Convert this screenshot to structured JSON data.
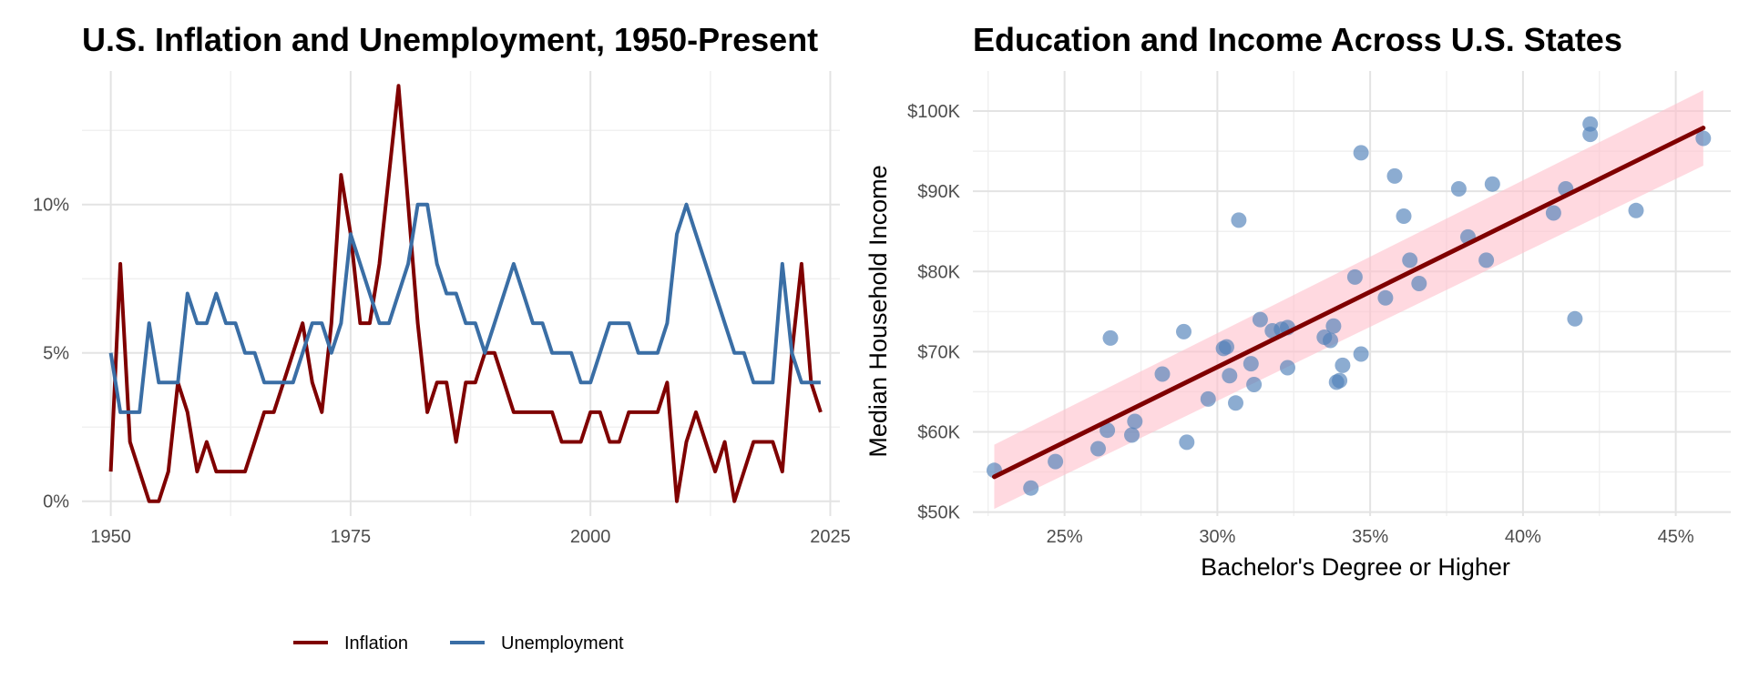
{
  "colors": {
    "inflation": "#7f0000",
    "unemployment": "#3a6ea5",
    "scatter_point": "#4e7fb8",
    "fit_line": "#7f0000",
    "confidence_band": "#ffc0cb"
  },
  "chart_data": [
    {
      "type": "line",
      "title": "U.S. Inflation and Unemployment, 1950-Present",
      "xlabel": "",
      "ylabel": "",
      "xlim": [
        1947,
        2026
      ],
      "ylim": [
        -0.5,
        14.5
      ],
      "x_ticks": [
        1950,
        1975,
        2000,
        2025
      ],
      "x_tick_labels": [
        "1950",
        "1975",
        "2000",
        "2025"
      ],
      "y_ticks": [
        0,
        5,
        10
      ],
      "y_tick_labels": [
        "0%",
        "5%",
        "10%"
      ],
      "legend_position": "bottom",
      "x": [
        1950,
        1951,
        1952,
        1953,
        1954,
        1955,
        1956,
        1957,
        1958,
        1959,
        1960,
        1961,
        1962,
        1963,
        1964,
        1965,
        1966,
        1967,
        1968,
        1969,
        1970,
        1971,
        1972,
        1973,
        1974,
        1975,
        1976,
        1977,
        1978,
        1979,
        1980,
        1981,
        1982,
        1983,
        1984,
        1985,
        1986,
        1987,
        1988,
        1989,
        1990,
        1991,
        1992,
        1993,
        1994,
        1995,
        1996,
        1997,
        1998,
        1999,
        2000,
        2001,
        2002,
        2003,
        2004,
        2005,
        2006,
        2007,
        2008,
        2009,
        2010,
        2011,
        2012,
        2013,
        2014,
        2015,
        2016,
        2017,
        2018,
        2019,
        2020,
        2021,
        2022,
        2023,
        2024
      ],
      "series": [
        {
          "name": "Inflation",
          "values": [
            1,
            8,
            2,
            1,
            0,
            0,
            1,
            4,
            3,
            1,
            2,
            1,
            1,
            1,
            1,
            2,
            3,
            3,
            4,
            5,
            6,
            4,
            3,
            6,
            11,
            9,
            6,
            6,
            8,
            11,
            14,
            10,
            6,
            3,
            4,
            4,
            2,
            4,
            4,
            5,
            5,
            4,
            3,
            3,
            3,
            3,
            3,
            2,
            2,
            2,
            3,
            3,
            2,
            2,
            3,
            3,
            3,
            3,
            4,
            0,
            2,
            3,
            2,
            1,
            2,
            0,
            1,
            2,
            2,
            2,
            1,
            5,
            8,
            4,
            3
          ]
        },
        {
          "name": "Unemployment",
          "values": [
            5,
            3,
            3,
            3,
            6,
            4,
            4,
            4,
            7,
            6,
            6,
            7,
            6,
            6,
            5,
            5,
            4,
            4,
            4,
            4,
            5,
            6,
            6,
            5,
            6,
            9,
            8,
            7,
            6,
            6,
            7,
            8,
            10,
            10,
            8,
            7,
            7,
            6,
            6,
            5,
            6,
            7,
            8,
            7,
            6,
            6,
            5,
            5,
            5,
            4,
            4,
            5,
            6,
            6,
            6,
            5,
            5,
            5,
            6,
            9,
            10,
            9,
            8,
            7,
            6,
            5,
            5,
            4,
            4,
            4,
            8,
            5,
            4,
            4,
            4
          ]
        }
      ]
    },
    {
      "type": "scatter",
      "title": "Education and Income Across U.S. States",
      "xlabel": "Bachelor's Degree or Higher",
      "ylabel": "Median Household Income",
      "xlim": [
        22,
        46.8
      ],
      "ylim": [
        49500,
        105000
      ],
      "x_ticks": [
        25,
        30,
        35,
        40,
        45
      ],
      "x_tick_labels": [
        "25%",
        "30%",
        "35%",
        "40%",
        "45%"
      ],
      "y_ticks": [
        50000,
        60000,
        70000,
        80000,
        90000,
        100000
      ],
      "y_tick_labels": [
        "$50K",
        "$60K",
        "$70K",
        "$80K",
        "$90K",
        "$100K"
      ],
      "fit_line": {
        "x": [
          22.7,
          45.9
        ],
        "y": [
          54400,
          97900
        ]
      },
      "confidence_band": {
        "x": [
          22.7,
          45.9
        ],
        "lower": [
          50400,
          93200
        ],
        "upper": [
          58400,
          102600
        ]
      },
      "points": [
        [
          22.7,
          55200
        ],
        [
          23.9,
          53000
        ],
        [
          24.7,
          56300
        ],
        [
          26.1,
          57900
        ],
        [
          26.4,
          60200
        ],
        [
          26.5,
          71700
        ],
        [
          27.2,
          59600
        ],
        [
          27.3,
          61300
        ],
        [
          28.2,
          67200
        ],
        [
          28.9,
          72500
        ],
        [
          29.0,
          58700
        ],
        [
          29.7,
          64100
        ],
        [
          30.2,
          70400
        ],
        [
          30.3,
          70600
        ],
        [
          30.4,
          67000
        ],
        [
          30.6,
          63600
        ],
        [
          30.7,
          86400
        ],
        [
          31.1,
          68500
        ],
        [
          31.2,
          65900
        ],
        [
          31.4,
          74000
        ],
        [
          31.8,
          72600
        ],
        [
          32.1,
          72800
        ],
        [
          32.3,
          73000
        ],
        [
          32.3,
          68000
        ],
        [
          33.5,
          71800
        ],
        [
          33.7,
          71400
        ],
        [
          33.8,
          73200
        ],
        [
          33.9,
          66200
        ],
        [
          34.0,
          66400
        ],
        [
          34.1,
          68300
        ],
        [
          34.5,
          79300
        ],
        [
          34.7,
          94800
        ],
        [
          34.7,
          69700
        ],
        [
          35.5,
          76700
        ],
        [
          35.8,
          91900
        ],
        [
          36.1,
          86900
        ],
        [
          36.3,
          81400
        ],
        [
          36.6,
          78500
        ],
        [
          37.9,
          90300
        ],
        [
          38.2,
          84300
        ],
        [
          38.8,
          81400
        ],
        [
          39.0,
          90900
        ],
        [
          41.0,
          87300
        ],
        [
          41.4,
          90300
        ],
        [
          41.7,
          74100
        ],
        [
          42.2,
          98400
        ],
        [
          42.2,
          97100
        ],
        [
          43.7,
          87600
        ],
        [
          45.9,
          96600
        ]
      ]
    }
  ]
}
